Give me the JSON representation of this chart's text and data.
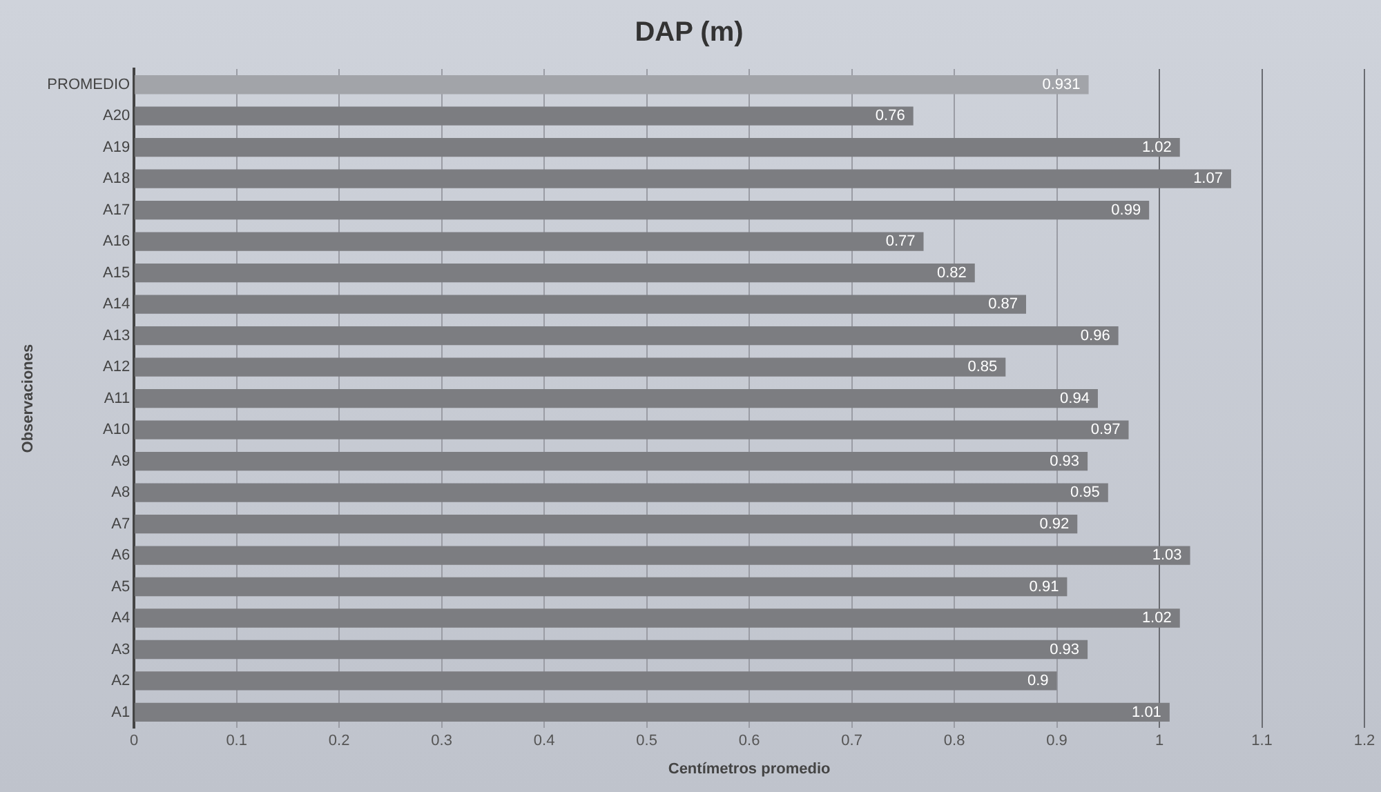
{
  "chart_data": {
    "type": "bar",
    "orientation": "horizontal",
    "title": "DAP (m)",
    "xlabel": "Centímetros promedio",
    "ylabel": "Observaciones",
    "categories": [
      "PROMEDIO",
      "A20",
      "A19",
      "A18",
      "A17",
      "A16",
      "A15",
      "A14",
      "A13",
      "A12",
      "A11",
      "A10",
      "A9",
      "A8",
      "A7",
      "A6",
      "A5",
      "A4",
      "A3",
      "A2",
      "A1"
    ],
    "values": [
      0.931,
      0.76,
      1.02,
      1.07,
      0.99,
      0.77,
      0.82,
      0.87,
      0.96,
      0.85,
      0.94,
      0.97,
      0.93,
      0.95,
      0.92,
      1.03,
      0.91,
      1.02,
      0.93,
      0.9,
      1.01
    ],
    "colors": [
      "#a2a4a9",
      "#7c7d81",
      "#7c7d81",
      "#7c7d81",
      "#7c7d81",
      "#7c7d81",
      "#7c7d81",
      "#7c7d81",
      "#7c7d81",
      "#7c7d81",
      "#7c7d81",
      "#7c7d81",
      "#7c7d81",
      "#7c7d81",
      "#7c7d81",
      "#7c7d81",
      "#7c7d81",
      "#7c7d81",
      "#7c7d81",
      "#7c7d81",
      "#7c7d81"
    ],
    "xlim": [
      0,
      1.2
    ],
    "xticks": [
      0,
      0.1,
      0.2,
      0.3,
      0.4,
      0.5,
      0.6,
      0.7,
      0.8,
      0.9,
      1,
      1.1,
      1.2
    ],
    "grid": "x",
    "data_labels": true,
    "legend": false
  }
}
